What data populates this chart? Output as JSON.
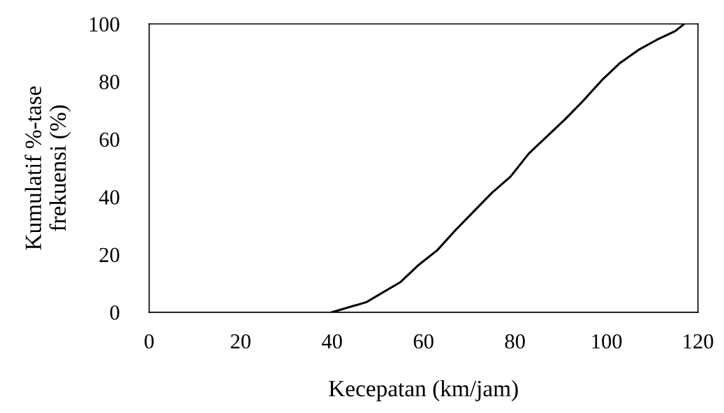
{
  "chart_data": {
    "type": "line",
    "xlabel": "Kecepatan (km/jam)",
    "ylabel": "Kumulatif %-tase\nfrekuensi (%)",
    "x": [
      40,
      47.5,
      55,
      59,
      63,
      67,
      71,
      75,
      79,
      83,
      87,
      91,
      95,
      99,
      103,
      107,
      111,
      115,
      117
    ],
    "series": [
      {
        "color": "#000000",
        "values": [
          0,
          3.5,
          10.5,
          16.5,
          21.5,
          28.5,
          35,
          41.5,
          47,
          55,
          61,
          67,
          73.5,
          80.5,
          86.5,
          91,
          94.5,
          97.5,
          100
        ]
      }
    ],
    "xlim": [
      0,
      120
    ],
    "ylim": [
      0,
      100
    ],
    "xticks": [
      0,
      20,
      40,
      60,
      80,
      100,
      120
    ],
    "yticks": [
      0,
      20,
      40,
      60,
      80,
      100
    ],
    "grid": false,
    "legend": false,
    "marker": "none",
    "line_style": "solid"
  }
}
